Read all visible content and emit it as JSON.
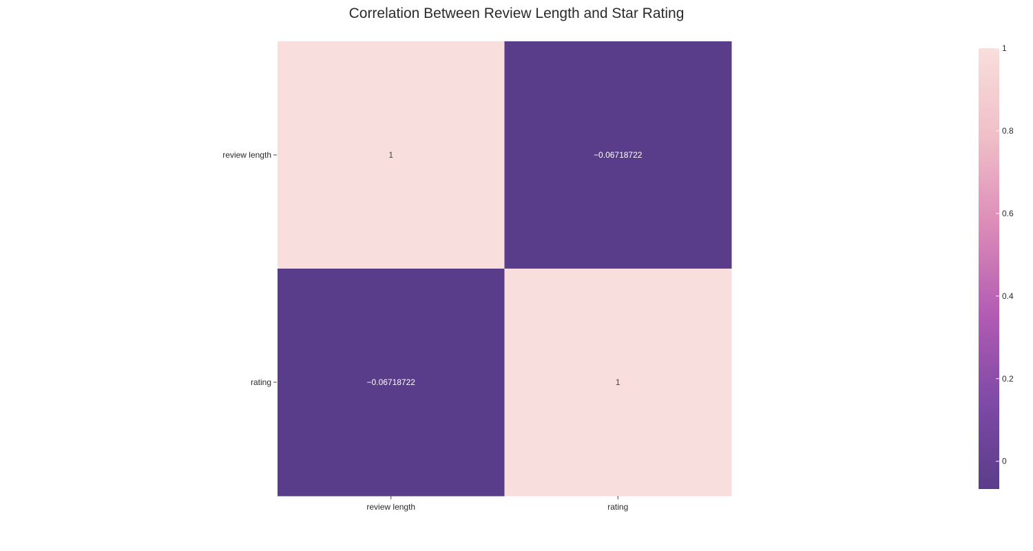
{
  "chart_data": {
    "type": "heatmap",
    "title": "Correlation Between Review Length and Star Rating",
    "x_categories": [
      "review length",
      "rating"
    ],
    "y_categories": [
      "review length",
      "rating"
    ],
    "z": [
      [
        1,
        -0.06718722
      ],
      [
        -0.06718722,
        1
      ]
    ],
    "cell_text": [
      [
        "1",
        "−0.06718722"
      ],
      [
        "−0.06718722",
        "1"
      ]
    ],
    "colorscale": [
      "#5a3d8a",
      "#7f4aa6",
      "#b35cb4",
      "#dc8cb8",
      "#f0bfc8",
      "#f8dedc"
    ],
    "colorbar": {
      "range": [
        -0.06718722,
        1
      ],
      "ticks": [
        0,
        0.2,
        0.4,
        0.6,
        0.8,
        1
      ],
      "tick_labels": [
        "0",
        "0.2",
        "0.4",
        "0.6",
        "0.8",
        "1"
      ]
    },
    "xlabel": "",
    "ylabel": ""
  }
}
